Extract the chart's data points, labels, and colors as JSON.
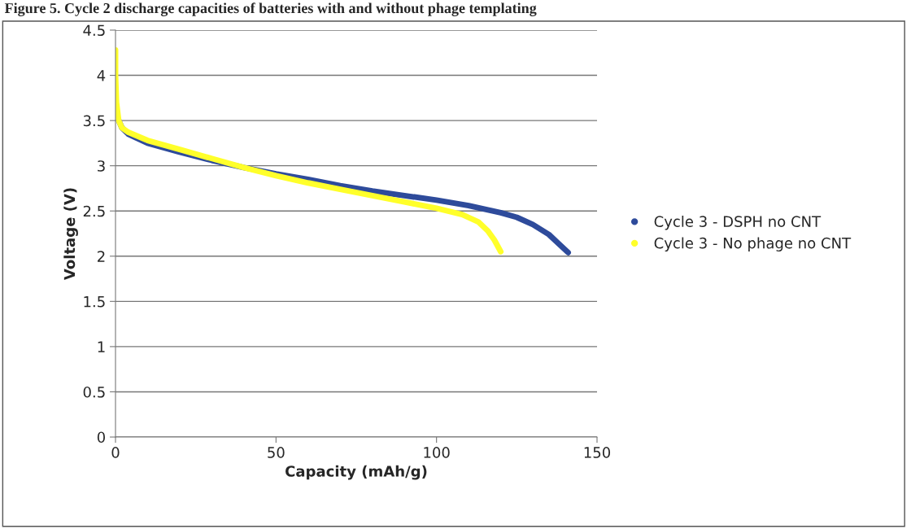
{
  "chart_data": {
    "type": "line",
    "title": "Figure 5. Cycle 2 discharge capacities of batteries with and without phage templating",
    "xlabel": "Capacity (mAh/g)",
    "ylabel": "Voltage (V)",
    "xlim": [
      0,
      150
    ],
    "xticks": [
      0,
      50,
      100,
      150
    ],
    "ylim": [
      0,
      4.5
    ],
    "yticks": [
      0,
      0.5,
      1,
      1.5,
      2,
      2.5,
      3,
      3.5,
      4,
      4.5
    ],
    "grid": "y",
    "legend": "right",
    "marker": "none",
    "line_style": "solid",
    "series": [
      {
        "name": "Cycle 3 - DSPH no CNT",
        "color": "#2e4b9b",
        "x": [
          1,
          2,
          4,
          10,
          20,
          30,
          40,
          50,
          60,
          70,
          80,
          90,
          100,
          110,
          120,
          125,
          130,
          135,
          138,
          141
        ],
        "values": [
          3.5,
          3.42,
          3.35,
          3.25,
          3.15,
          3.06,
          2.98,
          2.91,
          2.85,
          2.78,
          2.72,
          2.67,
          2.62,
          2.56,
          2.48,
          2.43,
          2.35,
          2.24,
          2.14,
          2.04
        ]
      },
      {
        "name": "Cycle 3 - No phage no CNT",
        "color": "#ffff2a",
        "x": [
          0,
          0,
          0.3,
          1,
          2,
          4,
          10,
          20,
          30,
          40,
          50,
          60,
          70,
          80,
          90,
          100,
          108,
          113,
          116,
          118,
          120
        ],
        "values": [
          4.28,
          4.0,
          3.7,
          3.5,
          3.42,
          3.37,
          3.28,
          3.18,
          3.08,
          2.98,
          2.89,
          2.81,
          2.74,
          2.67,
          2.6,
          2.53,
          2.46,
          2.38,
          2.28,
          2.18,
          2.05
        ]
      }
    ]
  }
}
